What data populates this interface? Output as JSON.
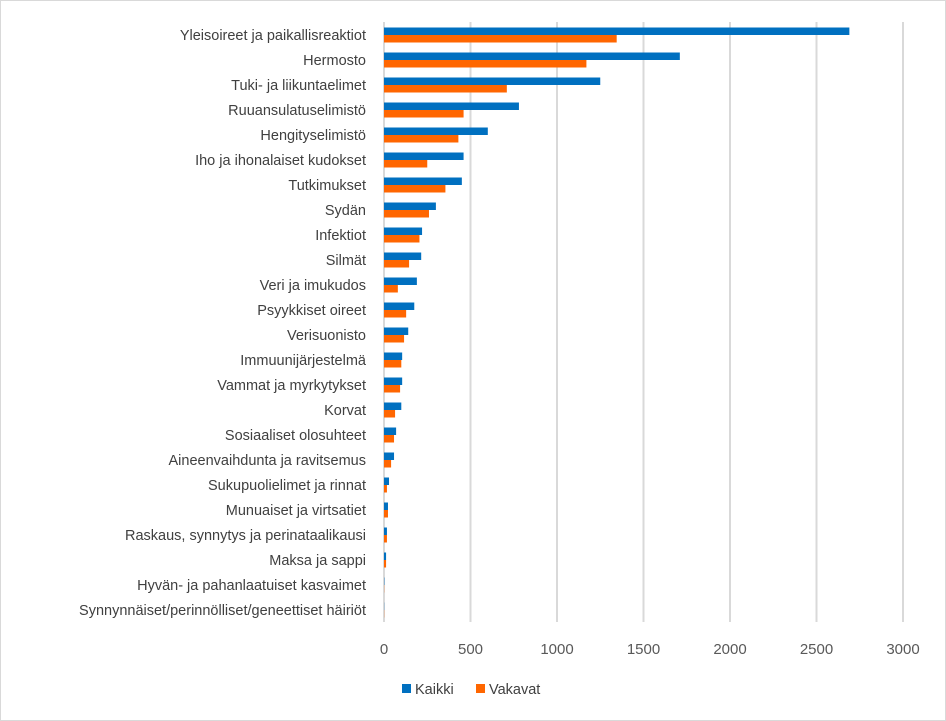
{
  "chart_data": {
    "type": "bar",
    "orientation": "horizontal",
    "title": "",
    "xlabel": "",
    "ylabel": "",
    "xlim": [
      0,
      3000
    ],
    "xticks": [
      0,
      500,
      1000,
      1500,
      2000,
      2500,
      3000
    ],
    "grid": true,
    "legend_position": "bottom",
    "categories": [
      "Yleisoireet ja paikallisreaktiot",
      "Hermosto",
      "Tuki- ja liikuntaelimet",
      "Ruuansulatuselimistö",
      "Hengityselimistö",
      "Iho ja ihonalaiset kudokset",
      "Tutkimukset",
      "Sydän",
      "Infektiot",
      "Silmät",
      "Veri ja imukudos",
      "Psyykkiset oireet",
      "Verisuonisto",
      "Immuunijärjestelmä",
      "Vammat ja myrkytykset",
      "Korvat",
      "Sosiaaliset olosuhteet",
      "Aineenvaihdunta ja ravitsemus",
      "Sukupuolielimet ja rinnat",
      "Munuaiset ja virtsatiet",
      "Raskaus, synnytys ja perinataalikausi",
      "Maksa ja sappi",
      "Hyvän- ja pahanlaatuiset kasvaimet",
      "Synnynnäiset/perinnölliset/geneettiset häiriöt"
    ],
    "series": [
      {
        "name": "Kaikki",
        "color": "#0070c0",
        "values": [
          2690,
          1710,
          1250,
          780,
          600,
          460,
          450,
          300,
          220,
          215,
          190,
          175,
          140,
          105,
          105,
          100,
          70,
          58,
          29,
          23,
          17,
          12,
          2,
          1
        ]
      },
      {
        "name": "Vakavat",
        "color": "#ff6600",
        "values": [
          1345,
          1170,
          710,
          460,
          430,
          250,
          355,
          260,
          205,
          145,
          80,
          128,
          116,
          100,
          93,
          64,
          58,
          41,
          17,
          23,
          17,
          12,
          1,
          1
        ]
      }
    ]
  }
}
